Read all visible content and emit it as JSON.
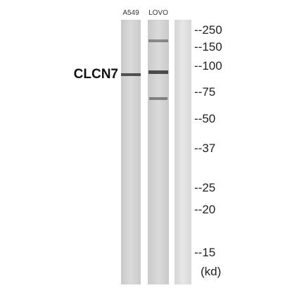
{
  "lanes": {
    "labels": [
      "A549",
      "LOVO"
    ]
  },
  "protein_label": "CLCN7",
  "markers": [
    "--250",
    "--150",
    "--100",
    "--75",
    "--50",
    "--37",
    "--25",
    "--20",
    "--15"
  ],
  "unit": "(kd)"
}
